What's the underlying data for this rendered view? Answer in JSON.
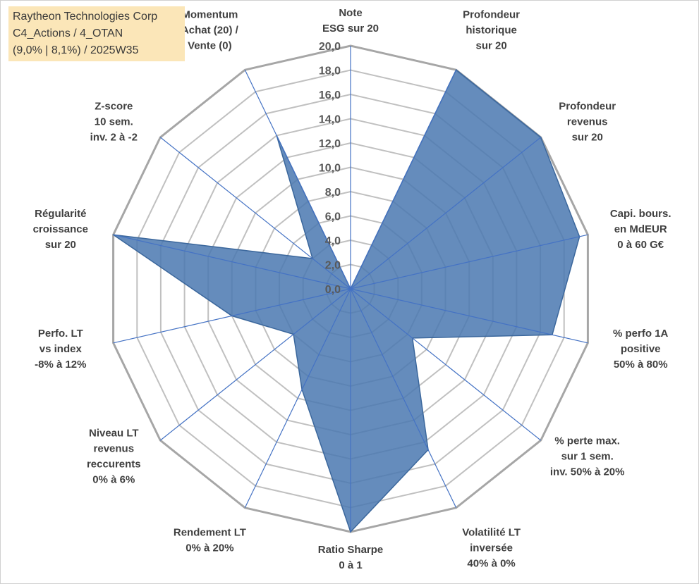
{
  "info_box": {
    "line1": "Raytheon Technologies Corp",
    "line2": "C4_Actions / 4_OTAN",
    "line3": "(9,0% | 8,1%) / 2025W35"
  },
  "colors": {
    "fill": "#4a78b0",
    "axis_spoke": "#4472c4",
    "ring": "#c0c0c0",
    "outer_ring": "#a6a6a6",
    "info_bg": "#fbe6b8"
  },
  "chart_data": {
    "type": "radar",
    "rmin": 0,
    "rmax": 20,
    "tick_step": 2,
    "tick_labels": [
      "0,0",
      "2,0",
      "4,0",
      "6,0",
      "8,0",
      "10,0",
      "12,0",
      "14,0",
      "16,0",
      "18,0",
      "20,0"
    ],
    "grid": true,
    "axes": [
      {
        "label": [
          "Note",
          "ESG sur 20"
        ],
        "value": 0
      },
      {
        "label": [
          "Profondeur",
          "historique",
          "sur 20"
        ],
        "value": 20
      },
      {
        "label": [
          "Profondeur",
          "revenus",
          "sur 20"
        ],
        "value": 20
      },
      {
        "label": [
          "Capi. bours.",
          "en MdEUR",
          "0 à 60 G€"
        ],
        "value": 19.3
      },
      {
        "label": [
          "% perfo 1A",
          "positive",
          "50% à 80%"
        ],
        "value": 17
      },
      {
        "label": [
          "% perte max.",
          "sur 1 sem.",
          "inv. 50% à 20%"
        ],
        "value": 6.5
      },
      {
        "label": [
          "Volatilité LT",
          "inversée",
          "40% à 0%"
        ],
        "value": 14.7
      },
      {
        "label": [
          "Ratio Sharpe",
          "0 à 1"
        ],
        "value": 20
      },
      {
        "label": [
          "Rendement LT",
          "0% à 20%"
        ],
        "value": 9.2
      },
      {
        "label": [
          "Niveau LT",
          "revenus",
          "reccurents",
          "0% à 6%"
        ],
        "value": 6
      },
      {
        "label": [
          "Perfo. LT",
          "vs index",
          "-8% à 12%"
        ],
        "value": 10
      },
      {
        "label": [
          "Régularité",
          "croissance",
          "sur 20"
        ],
        "value": 20
      },
      {
        "label": [
          "Z-score",
          "10 sem.",
          "inv. 2 à -2"
        ],
        "value": 4
      },
      {
        "label": [
          "Momentum",
          "Achat (20) /",
          "Vente (0)"
        ],
        "value": 14
      }
    ]
  }
}
